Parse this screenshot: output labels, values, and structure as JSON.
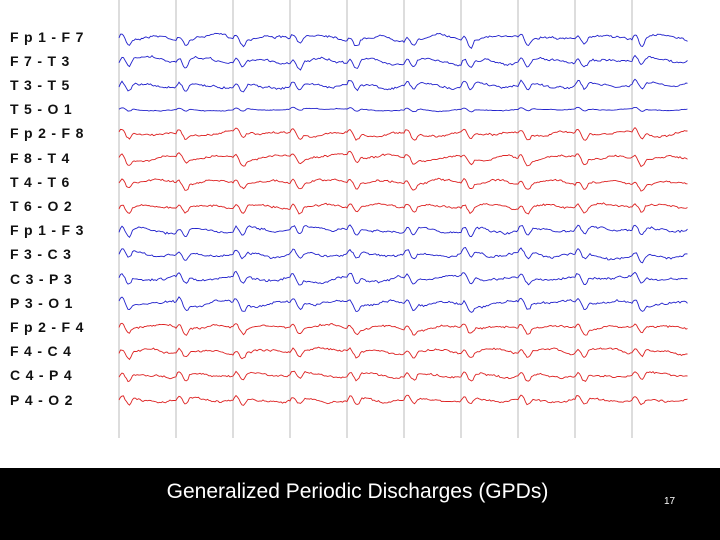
{
  "slide": {
    "title": "Generalized Periodic Discharges (GPDs)",
    "page_number": "17"
  },
  "eeg": {
    "colors": {
      "left": "#2222cc",
      "right": "#dd2222",
      "grid": "#bbbbbb"
    },
    "channels": [
      {
        "label": "Fp1-F7",
        "side": "left"
      },
      {
        "label": "F7-T3",
        "side": "left"
      },
      {
        "label": "T3-T5",
        "side": "left"
      },
      {
        "label": "T5-O1",
        "side": "left"
      },
      {
        "label": "Fp2-F8",
        "side": "right"
      },
      {
        "label": "F8-T4",
        "side": "right"
      },
      {
        "label": "T4-T6",
        "side": "right"
      },
      {
        "label": "T6-O2",
        "side": "right"
      },
      {
        "label": "Fp1-F3",
        "side": "left"
      },
      {
        "label": "F3-C3",
        "side": "left"
      },
      {
        "label": "C3-P3",
        "side": "left"
      },
      {
        "label": "P3-O1",
        "side": "left"
      },
      {
        "label": "Fp2-F4",
        "side": "right"
      },
      {
        "label": "F4-C4",
        "side": "right"
      },
      {
        "label": "C4-P4",
        "side": "right"
      },
      {
        "label": "P4-O2",
        "side": "right"
      }
    ]
  }
}
